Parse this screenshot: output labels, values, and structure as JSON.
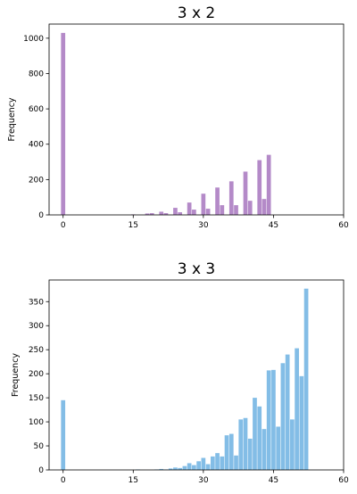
{
  "colors": {
    "top": "#b48ac8",
    "bottom": "#83bde6",
    "axes": "#000000"
  },
  "chart_data": [
    {
      "type": "bar",
      "title": "3 x 2",
      "xlabel": "",
      "ylabel": "Frequency",
      "xlim": [
        -3,
        60
      ],
      "ylim": [
        0,
        1080
      ],
      "xticks": [
        0,
        15,
        30,
        45,
        60
      ],
      "yticks": [
        0,
        200,
        400,
        600,
        800,
        1000
      ],
      "bar_width": 0.9,
      "x": [
        0,
        15,
        18,
        19,
        21,
        22,
        24,
        25,
        27,
        28,
        30,
        31,
        33,
        34,
        36,
        37,
        39,
        40,
        42,
        43,
        44
      ],
      "values": [
        1030,
        3,
        8,
        10,
        18,
        10,
        40,
        15,
        70,
        30,
        120,
        35,
        155,
        55,
        190,
        55,
        245,
        80,
        310,
        90,
        340
      ]
    },
    {
      "type": "bar",
      "title": "3 x 3",
      "xlabel": "",
      "ylabel": "Frequency",
      "xlim": [
        -3,
        60
      ],
      "ylim": [
        0,
        395
      ],
      "xticks": [
        0,
        15,
        30,
        45,
        60
      ],
      "yticks": [
        0,
        50,
        100,
        150,
        200,
        250,
        300,
        350
      ],
      "bar_width": 0.9,
      "x": [
        0,
        16,
        20,
        21,
        22,
        23,
        24,
        25,
        26,
        27,
        28,
        29,
        30,
        31,
        32,
        33,
        34,
        35,
        36,
        37,
        38,
        39,
        40,
        41,
        42,
        43,
        44,
        45,
        46,
        47,
        48,
        49,
        50,
        51,
        52,
        53
      ],
      "values": [
        145,
        1,
        1,
        2,
        1,
        3,
        5,
        4,
        8,
        14,
        10,
        18,
        25,
        12,
        28,
        35,
        28,
        72,
        75,
        30,
        105,
        108,
        65,
        150,
        132,
        85,
        207,
        208,
        90,
        222,
        240,
        105,
        253,
        195,
        377,
        0
      ]
    }
  ]
}
